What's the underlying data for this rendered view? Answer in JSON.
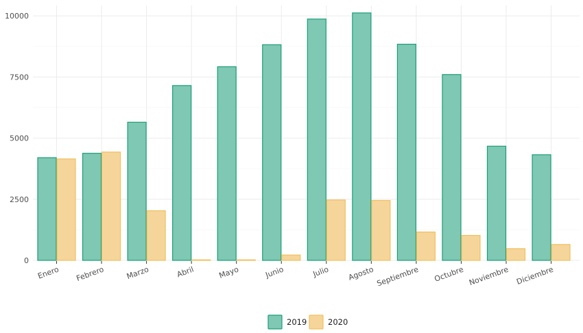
{
  "chart_data": {
    "type": "bar",
    "categories": [
      "Enero",
      "Febrero",
      "Marzo",
      "Abril",
      "Mayo",
      "Junio",
      "Julio",
      "Agosto",
      "Septiembre",
      "Octubre",
      "Noviembre",
      "Diciembre"
    ],
    "series": [
      {
        "name": "2019",
        "color": "#1b9e77",
        "values": [
          4200,
          4380,
          5650,
          7150,
          7920,
          8820,
          9870,
          10120,
          8840,
          7600,
          4670,
          4320
        ]
      },
      {
        "name": "2020",
        "color": "#f0c060",
        "values": [
          4150,
          4430,
          2030,
          20,
          15,
          220,
          2470,
          2450,
          1160,
          1020,
          480,
          650
        ]
      }
    ],
    "yticks": [
      "0",
      "2500",
      "5000",
      "7500",
      "10000"
    ],
    "ylim": [
      0,
      10200
    ],
    "grid": true,
    "legend_position": "bottom"
  }
}
